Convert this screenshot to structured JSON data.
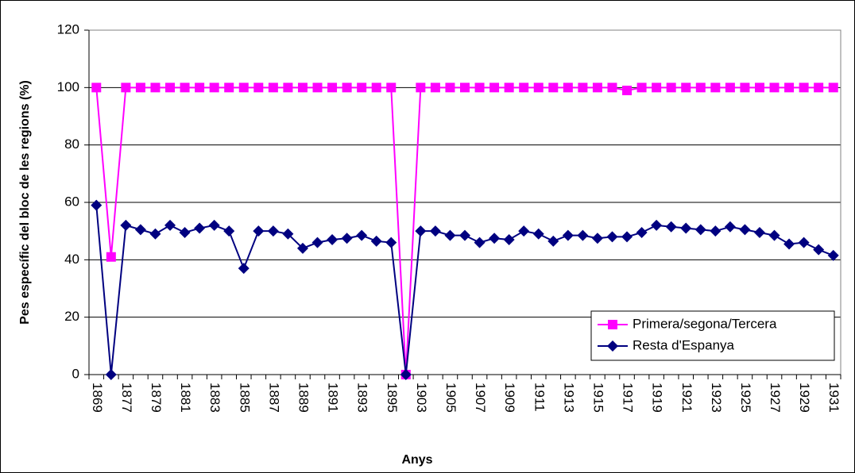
{
  "chart_data": {
    "type": "line",
    "xlabel": "Anys",
    "ylabel": "Pes específic del bloc de les regions  (%)",
    "categories": [
      "1869",
      null,
      "1877",
      null,
      "1879",
      null,
      "1881",
      null,
      "1883",
      null,
      "1885",
      null,
      "1887",
      null,
      "1889",
      null,
      "1891",
      null,
      "1893",
      null,
      "1895",
      null,
      "1903",
      null,
      "1905",
      null,
      "1907",
      null,
      "1909",
      null,
      "1911",
      null,
      "1913",
      null,
      "1915",
      null,
      "1917",
      null,
      "1919",
      null,
      "1921",
      null,
      "1923",
      null,
      "1925",
      null,
      "1927",
      null,
      "1929",
      null,
      "1931"
    ],
    "series": [
      {
        "name": "Primera/segona/Tercera",
        "color": "#ff00ff",
        "marker": "square",
        "values": [
          100,
          41,
          100,
          100,
          100,
          100,
          100,
          100,
          100,
          100,
          100,
          100,
          100,
          100,
          100,
          100,
          100,
          100,
          100,
          100,
          100,
          0,
          100,
          100,
          100,
          100,
          100,
          100,
          100,
          100,
          100,
          100,
          100,
          100,
          100,
          100,
          99,
          100,
          100,
          100,
          100,
          100,
          100,
          100,
          100,
          100,
          100,
          100,
          100,
          100,
          100
        ]
      },
      {
        "name": "Resta d'Espanya",
        "color": "#000080",
        "marker": "diamond",
        "values": [
          59,
          0,
          52,
          50.5,
          49,
          52,
          49.5,
          51,
          52,
          50,
          37,
          50,
          50,
          49,
          44,
          46,
          47,
          47.5,
          48.5,
          46.5,
          46,
          0,
          50,
          50,
          48.5,
          48.5,
          46,
          47.5,
          47,
          50,
          49,
          46.5,
          48.5,
          48.5,
          47.5,
          48,
          48,
          49.5,
          52,
          51.5,
          51,
          50.5,
          50,
          51.5,
          50.5,
          49.5,
          48.5,
          45.5,
          46,
          43.5,
          41.5
        ]
      }
    ],
    "ylim": [
      0,
      120
    ],
    "yticks": [
      0,
      20,
      40,
      60,
      80,
      100,
      120
    ],
    "grid": true,
    "legend": "lower right"
  }
}
